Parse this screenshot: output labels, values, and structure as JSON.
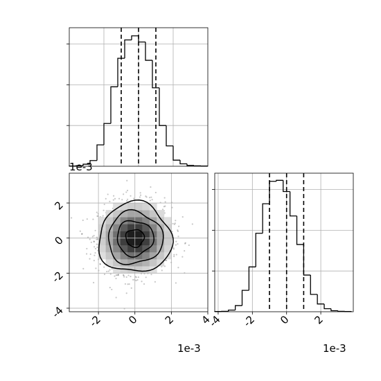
{
  "chart_data": [
    {
      "panel": "marginal-x1",
      "type": "histogram-step",
      "bins": {
        "start": -4,
        "width": 0.4,
        "count": 20
      },
      "counts": [
        1,
        3,
        10,
        28,
        105,
        210,
        390,
        530,
        620,
        640,
        610,
        520,
        385,
        200,
        100,
        30,
        12,
        4,
        2,
        1
      ],
      "quantiles": [
        -1.0,
        0.0,
        1.0
      ],
      "xlim": [
        -4,
        4
      ],
      "ylim": [
        0,
        680
      ],
      "y_ticks_unlabeled": [
        200,
        400,
        600
      ],
      "grid": true
    },
    {
      "panel": "joint-x1-x2",
      "type": "density-contour",
      "x_ticks": [
        "-2",
        "0",
        "2",
        "4"
      ],
      "y_ticks": [
        "2",
        "0",
        "-2",
        "-4"
      ],
      "x_tick_values": [
        -2,
        0,
        2,
        4
      ],
      "y_tick_values": [
        2,
        0,
        -2,
        -4
      ],
      "x_offset_label": "1e-3",
      "y_offset_label": "1e-3",
      "xlim": [
        -3.6,
        4.0
      ],
      "ylim": [
        -4.2,
        3.7
      ],
      "sigma": 1.0,
      "contour_radii_sigma": [
        0.5,
        1.0,
        1.5,
        2.0
      ],
      "grid": true
    },
    {
      "panel": "marginal-x2",
      "type": "histogram-step",
      "bins": {
        "start": -4.2,
        "width": 0.4,
        "count": 20
      },
      "counts": [
        1,
        2,
        8,
        30,
        105,
        220,
        385,
        530,
        640,
        645,
        590,
        470,
        330,
        180,
        85,
        38,
        15,
        5,
        2,
        1
      ],
      "quantiles": [
        -1.0,
        0.0,
        1.0
      ],
      "x_ticks": [
        "-4",
        "-2",
        "0",
        "2"
      ],
      "x_tick_values": [
        -4,
        -2,
        0,
        2
      ],
      "x_offset_label": "1e-3",
      "xlim": [
        -4.2,
        3.9
      ],
      "ylim": [
        0,
        680
      ],
      "y_ticks_unlabeled": [
        200,
        400,
        600
      ],
      "grid": true
    }
  ]
}
